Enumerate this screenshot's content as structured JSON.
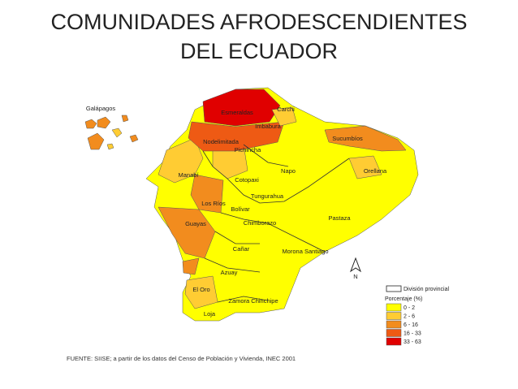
{
  "title": [
    "COMUNIDADES AFRODESCENDIENTES",
    "DEL ECUADOR"
  ],
  "map": {
    "labels": [
      "Galápagos",
      "Esmeraldas",
      "Carchi",
      "Imbabura",
      "Sucumbíos",
      "Nodelimitada",
      "Pichincha",
      "Manabí",
      "Cotopaxi",
      "Napo",
      "Orellana",
      "Los Ríos",
      "Tungurahua",
      "Bolívar",
      "Guayas",
      "Chimborazo",
      "Pastaza",
      "Cañar",
      "Morona Santiago",
      "Azuay",
      "El Oro",
      "Zamora Chinchipe",
      "Loja"
    ],
    "north": "N"
  },
  "legend": {
    "boundary": "División provincial",
    "title": "Porcentaje (%)",
    "items": [
      {
        "label": "0 - 2",
        "color": "#ffff00"
      },
      {
        "label": "2 - 6",
        "color": "#ffcc33"
      },
      {
        "label": "6 - 16",
        "color": "#f28c1e"
      },
      {
        "label": "16 - 33",
        "color": "#ee5a14"
      },
      {
        "label": "33 - 63",
        "color": "#e00000"
      }
    ]
  },
  "source": "FUENTE: SIISE; a partir de los datos del Censo de Población y Vivienda, INEC 2001"
}
